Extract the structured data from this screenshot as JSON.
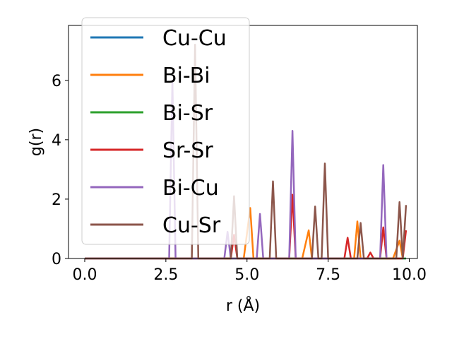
{
  "chart_data": {
    "type": "line",
    "title": "",
    "xlabel": "r (Å)",
    "ylabel": "g(r)",
    "xlim": [
      -0.5,
      10.25
    ],
    "ylim": [
      0,
      7.85
    ],
    "xticks": [
      "0.0",
      "2.5",
      "5.0",
      "7.5",
      "10.0"
    ],
    "xtick_values": [
      0,
      2.5,
      5,
      7.5,
      10
    ],
    "yticks": [
      "0",
      "2",
      "4",
      "6"
    ],
    "ytick_values": [
      0,
      2,
      4,
      6
    ],
    "grid": false,
    "legend_position": "upper-left",
    "series": [
      {
        "name": "Cu-Cu",
        "color": "#1f77b4",
        "points": [
          [
            0,
            0
          ],
          [
            9.9,
            0
          ]
        ]
      },
      {
        "name": "Bi-Bi",
        "color": "#ff7f0e",
        "points": [
          [
            0,
            0
          ],
          [
            4.9,
            0
          ],
          [
            5.1,
            1.7
          ],
          [
            5.2,
            0
          ],
          [
            6.7,
            0
          ],
          [
            6.9,
            0.95
          ],
          [
            7.0,
            0
          ],
          [
            8.3,
            0
          ],
          [
            8.4,
            1.25
          ],
          [
            8.5,
            0
          ],
          [
            9.5,
            0
          ],
          [
            9.7,
            0.6
          ],
          [
            9.8,
            0
          ]
        ]
      },
      {
        "name": "Bi-Sr",
        "color": "#2ca02c",
        "points": [
          [
            0,
            0
          ],
          [
            9.9,
            0
          ]
        ]
      },
      {
        "name": "Sr-Sr",
        "color": "#d62728",
        "points": [
          [
            0,
            0
          ],
          [
            4.5,
            0
          ],
          [
            4.6,
            0.8
          ],
          [
            4.7,
            0
          ],
          [
            6.3,
            0
          ],
          [
            6.4,
            2.15
          ],
          [
            6.5,
            0
          ],
          [
            8.0,
            0
          ],
          [
            8.1,
            0.7
          ],
          [
            8.2,
            0
          ],
          [
            8.7,
            0
          ],
          [
            8.8,
            0.2
          ],
          [
            8.9,
            0
          ],
          [
            9.1,
            0
          ],
          [
            9.2,
            1.05
          ],
          [
            9.3,
            0
          ],
          [
            9.8,
            0
          ],
          [
            9.9,
            0.95
          ]
        ]
      },
      {
        "name": "Bi-Cu",
        "color": "#9467bd",
        "points": [
          [
            0,
            0
          ],
          [
            2.6,
            0
          ],
          [
            2.7,
            6.0
          ],
          [
            2.8,
            0
          ],
          [
            4.3,
            0
          ],
          [
            4.4,
            0.9
          ],
          [
            4.5,
            0
          ],
          [
            5.3,
            0
          ],
          [
            5.4,
            1.5
          ],
          [
            5.5,
            0
          ],
          [
            6.3,
            0
          ],
          [
            6.4,
            4.3
          ],
          [
            6.5,
            0
          ],
          [
            9.1,
            0
          ],
          [
            9.2,
            3.15
          ],
          [
            9.3,
            0
          ]
        ]
      },
      {
        "name": "Cu-Sr",
        "color": "#8c564b",
        "points": [
          [
            0,
            0
          ],
          [
            3.3,
            0
          ],
          [
            3.4,
            7.2
          ],
          [
            3.5,
            0
          ],
          [
            4.5,
            0
          ],
          [
            4.6,
            2.1
          ],
          [
            4.7,
            0
          ],
          [
            5.7,
            0
          ],
          [
            5.8,
            2.6
          ],
          [
            5.9,
            0
          ],
          [
            7.0,
            0
          ],
          [
            7.1,
            1.75
          ],
          [
            7.2,
            0
          ],
          [
            7.3,
            0
          ],
          [
            7.4,
            3.2
          ],
          [
            7.5,
            0
          ],
          [
            8.4,
            0
          ],
          [
            8.5,
            1.2
          ],
          [
            8.6,
            0
          ],
          [
            9.6,
            0
          ],
          [
            9.7,
            1.9
          ],
          [
            9.8,
            0
          ],
          [
            9.9,
            1.8
          ]
        ]
      }
    ]
  }
}
